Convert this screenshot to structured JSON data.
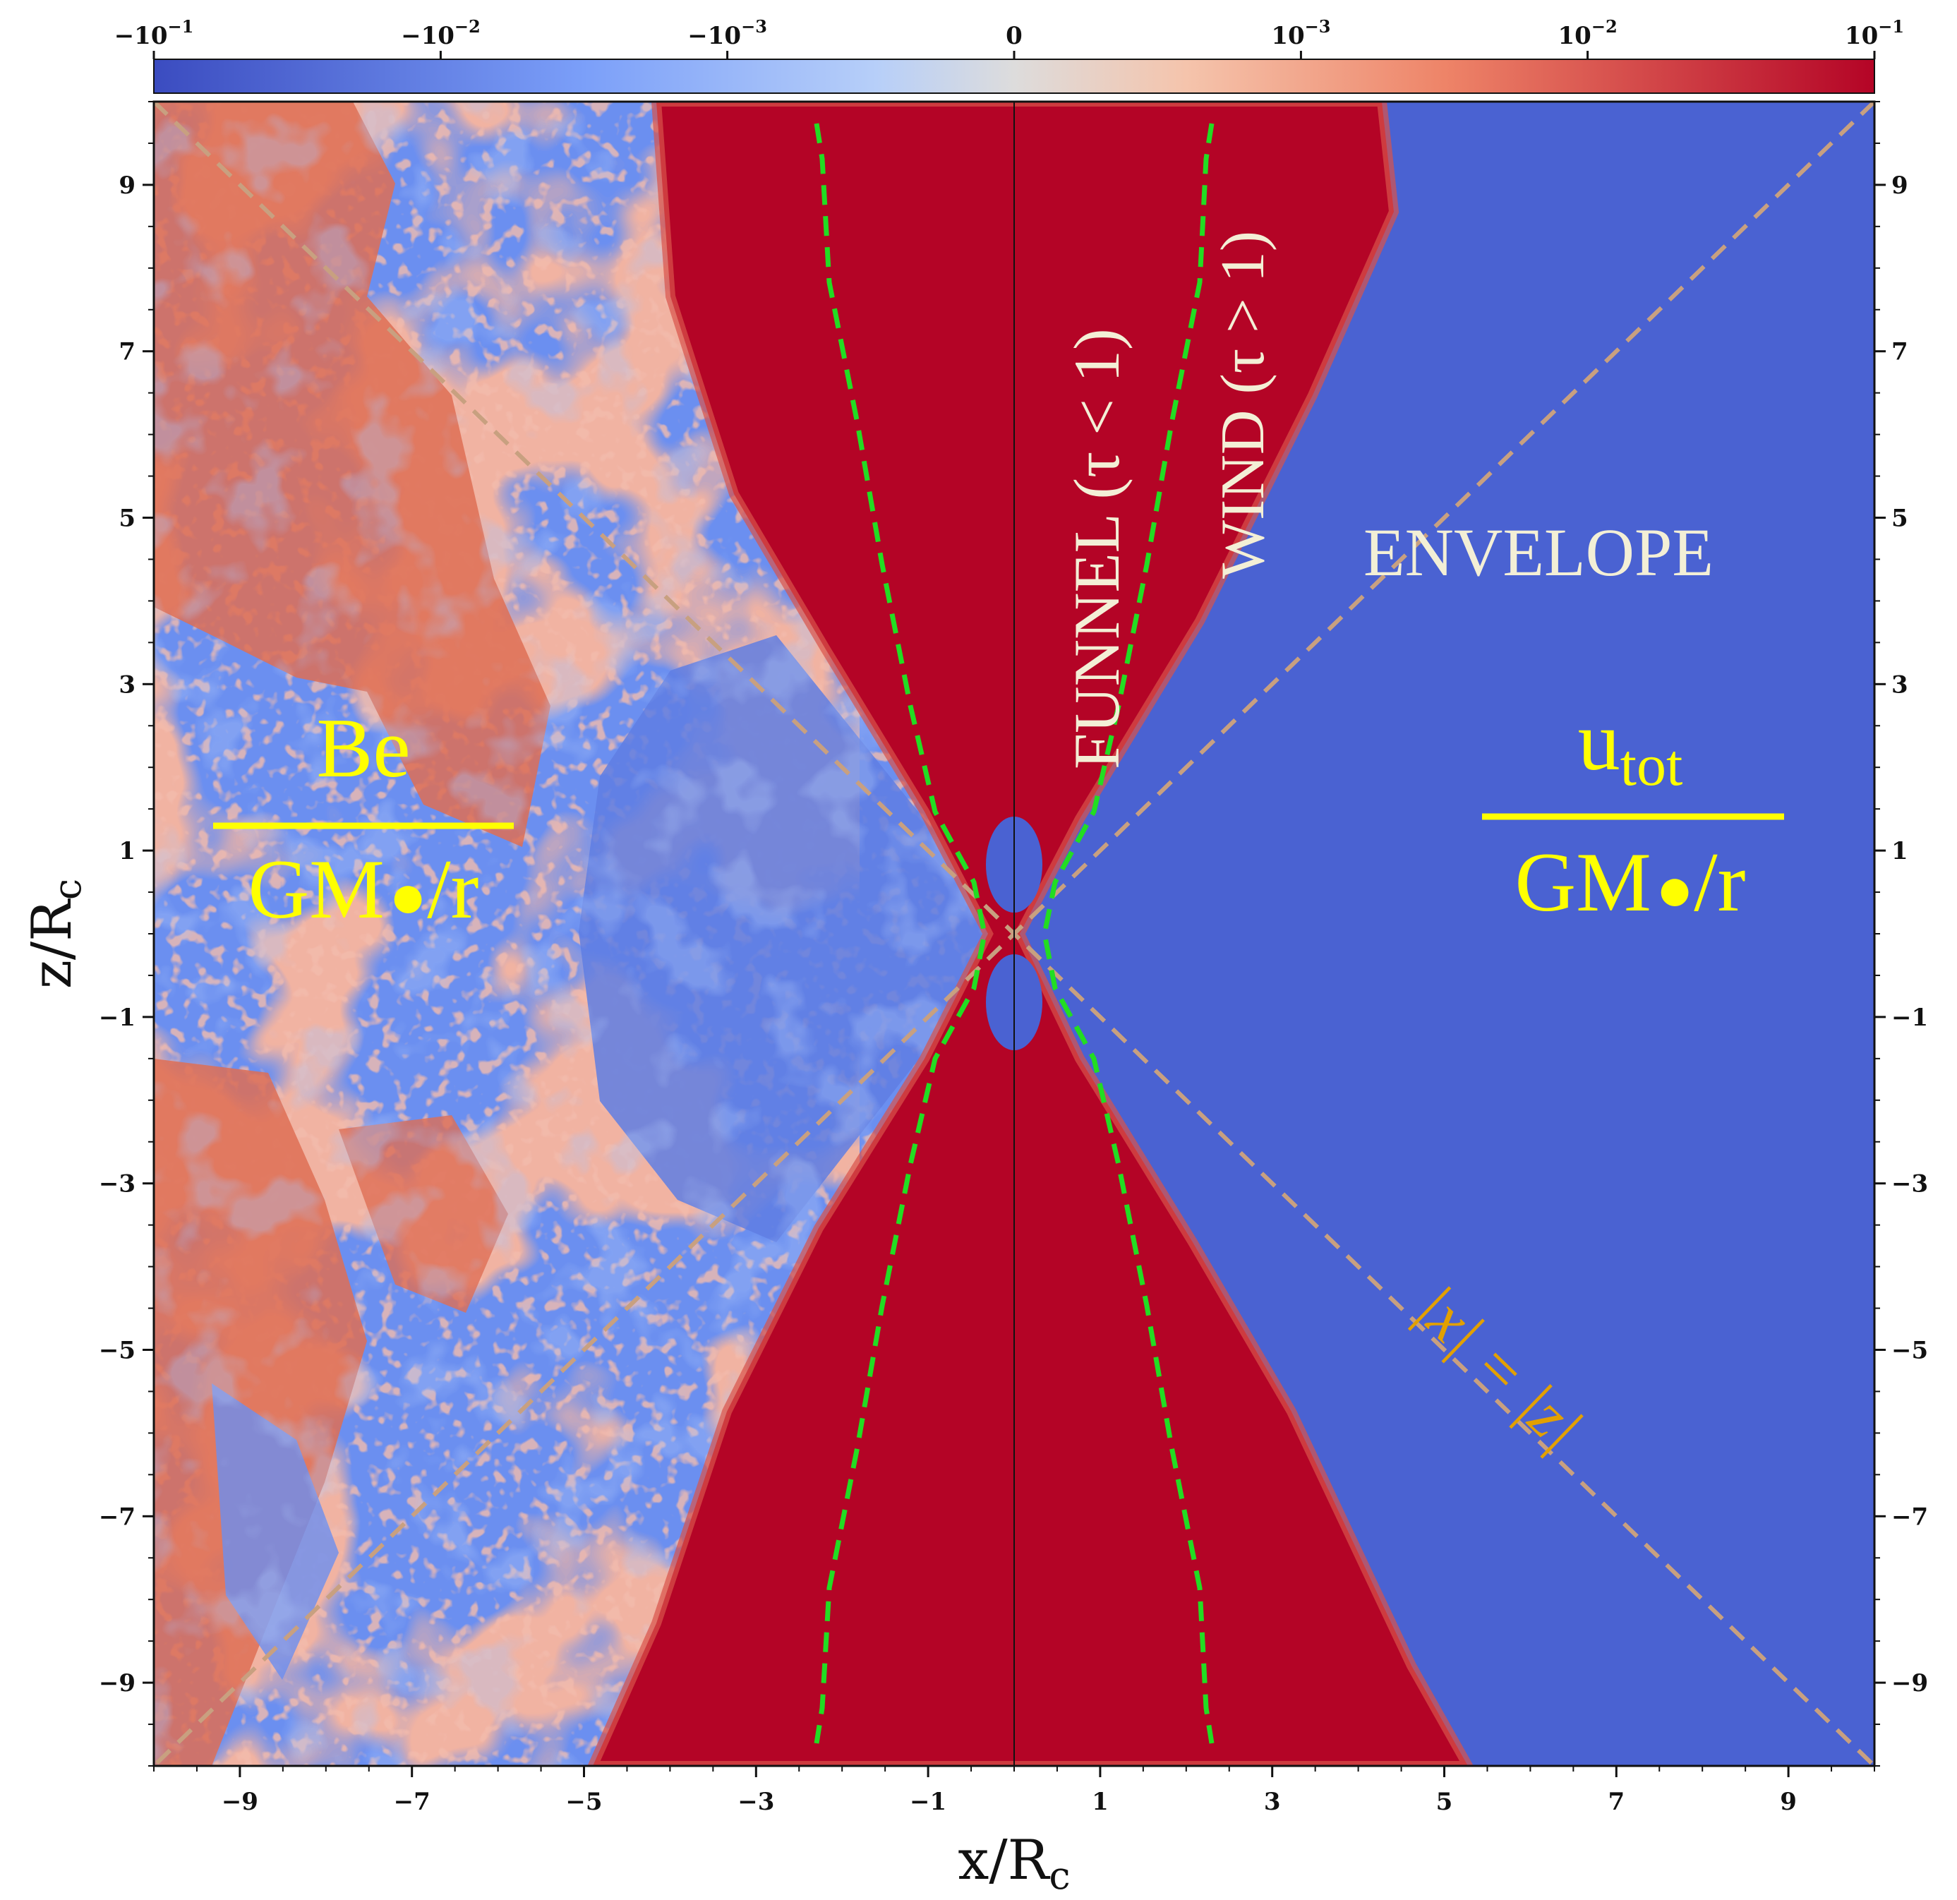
{
  "chart_data": {
    "type": "heatmap",
    "xlabel": "x/R",
    "xlabel_sub": "c",
    "ylabel": "z/R",
    "ylabel_sub": "c",
    "xlim": [
      -10,
      10
    ],
    "ylim": [
      -10,
      10
    ],
    "x_ticks": [
      -9,
      -7,
      -5,
      -3,
      -1,
      1,
      3,
      5,
      7,
      9
    ],
    "y_ticks": [
      9,
      7,
      5,
      3,
      1,
      -1,
      -3,
      -5,
      -7,
      -9
    ],
    "x_tick_labels": [
      "−9",
      "−7",
      "−5",
      "−3",
      "−1",
      "1",
      "3",
      "5",
      "7",
      "9"
    ],
    "y_tick_labels": [
      "9",
      "7",
      "5",
      "3",
      "1",
      "−1",
      "−3",
      "−5",
      "−7",
      "−9"
    ],
    "colorbar": {
      "scale": "symlog",
      "colormap": "coolwarm",
      "ticks": [
        {
          "pos": -0.5,
          "base": "−10",
          "exp": "−1"
        },
        {
          "pos": -0.3333,
          "base": "−10",
          "exp": "−2"
        },
        {
          "pos": -0.1667,
          "base": "−10",
          "exp": "−3"
        },
        {
          "pos": 0,
          "base": "0",
          "exp": ""
        },
        {
          "pos": 0.1667,
          "base": "10",
          "exp": "−3"
        },
        {
          "pos": 0.3333,
          "base": "10",
          "exp": "−2"
        },
        {
          "pos": 0.5,
          "base": "10",
          "exp": "−1"
        }
      ]
    },
    "annotations": {
      "funnel": "FUNNEL (τ < 1)",
      "wind": "WIND (τ > 1)",
      "envelope": "ENVELOPE",
      "left_numerator": "Be",
      "left_denominator": "GM",
      "left_denominator_tail": "/r",
      "right_numerator": "u",
      "right_numerator_sub": "tot",
      "right_denominator": "GM",
      "right_denominator_tail": "/r",
      "diagonal_label": "|x| = |z|"
    },
    "colors": {
      "red": "#b40426",
      "blue": "#4a62d2",
      "light_red": "#e0745b",
      "light_blue": "#6b8ff0",
      "funnel_line": "#22dd22",
      "diagonal": "#c8a080",
      "annotation_yellow": "#ffff00",
      "annotation_cream": "#f3efd6",
      "diagonal_label_color": "#e2a000"
    }
  }
}
